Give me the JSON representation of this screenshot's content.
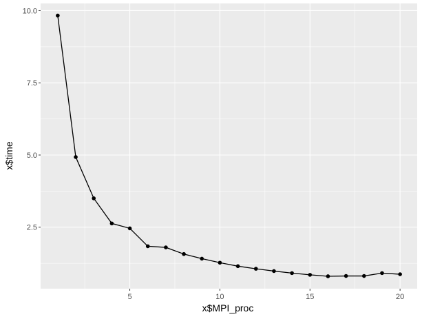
{
  "chart_data": {
    "type": "line",
    "xlabel": "x$MPI_proc",
    "ylabel": "x$time",
    "xlim": [
      0.05,
      20.95
    ],
    "ylim": [
      0.37,
      10.25
    ],
    "x_ticks": [
      5,
      10,
      15,
      20
    ],
    "x_tick_labels": [
      "5",
      "10",
      "15",
      "20"
    ],
    "y_ticks": [
      2.5,
      5.0,
      7.5,
      10.0
    ],
    "y_tick_labels": [
      "2.5",
      "5.0",
      "7.5",
      "10.0"
    ],
    "grid": true,
    "series": [
      {
        "x": [
          1,
          2,
          3,
          4,
          5,
          6,
          7,
          8,
          9,
          10,
          11,
          12,
          13,
          14,
          15,
          16,
          17,
          18,
          19,
          20
        ],
        "y": [
          9.83,
          4.93,
          3.5,
          2.63,
          2.46,
          1.84,
          1.8,
          1.57,
          1.41,
          1.27,
          1.15,
          1.06,
          0.98,
          0.91,
          0.85,
          0.8,
          0.81,
          0.81,
          0.91,
          0.87
        ]
      }
    ],
    "colors": {
      "panel": "#ebebeb",
      "grid_major": "#ffffff",
      "line": "#000000",
      "point": "#000000",
      "tick_text": "#4d4d4d"
    }
  }
}
